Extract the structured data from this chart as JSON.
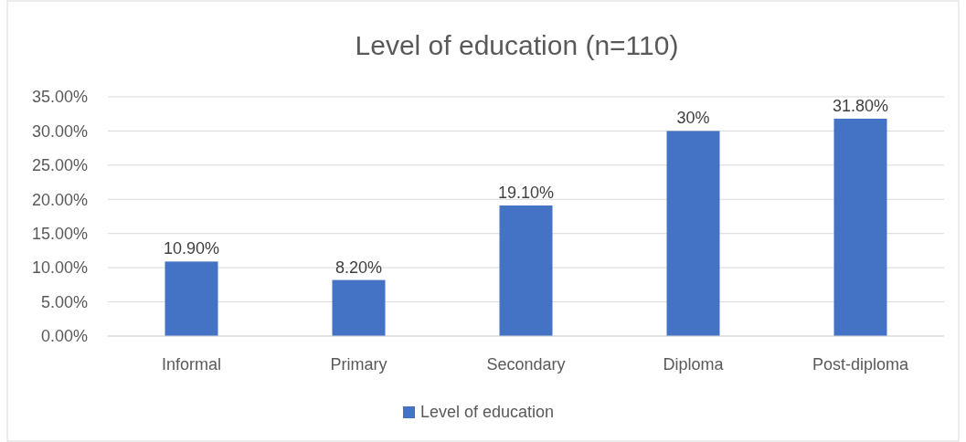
{
  "chart_data": {
    "type": "bar",
    "title": "Level of education (n=110)",
    "categories": [
      "Informal",
      "Primary",
      "Secondary",
      "Diploma",
      "Post-diploma"
    ],
    "series": [
      {
        "name": "Level of education",
        "color": "#4472c4",
        "values": [
          10.9,
          8.2,
          19.1,
          30,
          31.8
        ],
        "value_labels": [
          "10.90%",
          "8.20%",
          "19.10%",
          "30%",
          "31.80%"
        ]
      }
    ],
    "ylim": [
      0,
      35
    ],
    "yticks": [
      {
        "value": 0,
        "label": "0.00%"
      },
      {
        "value": 5,
        "label": "5.00%"
      },
      {
        "value": 10,
        "label": "10.00%"
      },
      {
        "value": 15,
        "label": "15.00%"
      },
      {
        "value": 20,
        "label": "20.00%"
      },
      {
        "value": 25,
        "label": "25.00%"
      },
      {
        "value": 30,
        "label": "30.00%"
      },
      {
        "value": 35,
        "label": "35.00%"
      }
    ],
    "grid": "y",
    "legend": "bottom"
  }
}
